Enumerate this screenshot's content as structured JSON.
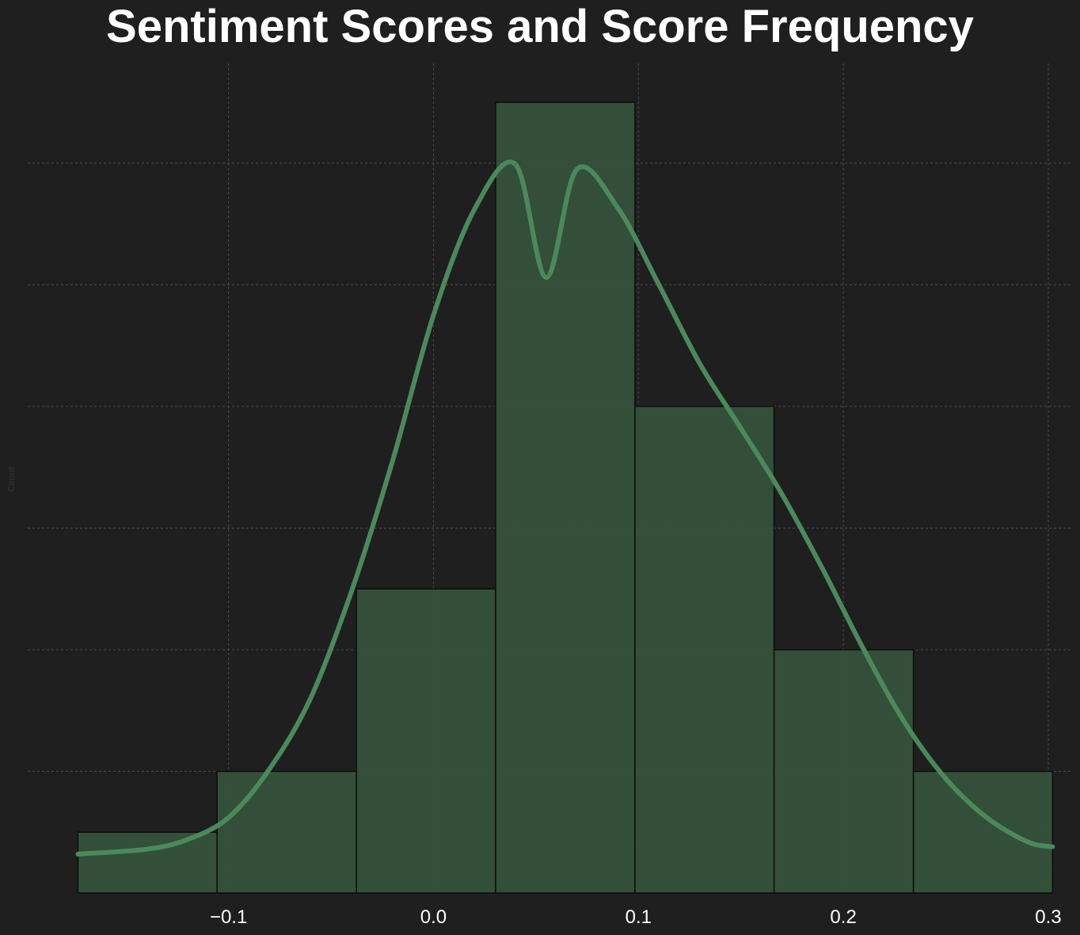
{
  "chart_data": {
    "type": "bar",
    "title": "Sentiment Scores and Score Frequency",
    "ylabel": "Count",
    "bin_edges": [
      -0.1735,
      -0.1056,
      -0.0376,
      0.0303,
      0.0983,
      0.1662,
      0.2342,
      0.3021
    ],
    "counts": [
      0.5,
      1,
      2.5,
      6.5,
      4,
      2,
      1
    ],
    "kde": {
      "x": [
        -0.1735,
        -0.14,
        -0.12,
        -0.1,
        -0.08,
        -0.06,
        -0.04,
        -0.02,
        0.0,
        0.02,
        0.04,
        0.055,
        0.07,
        0.09,
        0.11,
        0.13,
        0.15,
        0.17,
        0.19,
        0.21,
        0.23,
        0.25,
        0.27,
        0.29,
        0.3021
      ],
      "y": [
        0.32,
        0.36,
        0.44,
        0.62,
        1.02,
        1.6,
        2.48,
        3.55,
        4.75,
        5.62,
        5.99,
        5.06,
        5.95,
        5.63,
        5.0,
        4.35,
        3.82,
        3.28,
        2.66,
        2.0,
        1.4,
        0.94,
        0.62,
        0.42,
        0.38
      ]
    },
    "xlim": [
      -0.198,
      0.312
    ],
    "ylim": [
      0,
      6.82
    ],
    "x_ticks": [
      -0.1,
      0.0,
      0.1,
      0.2,
      0.3
    ],
    "x_tick_labels": [
      "−0.1",
      "0.0",
      "0.1",
      "0.2",
      "0.3"
    ],
    "y_gridlines": [
      1,
      2,
      3,
      4,
      5,
      6
    ],
    "grid": true,
    "colors": {
      "background": "#1f1f1f",
      "bar_fill": "#36523b",
      "bar_edge": "#0d0d0d",
      "kde_line": "#4a8a5a",
      "grid": "#4a4a4a",
      "text": "#ffffff",
      "ylabel_text": "#2e2e2e"
    }
  }
}
